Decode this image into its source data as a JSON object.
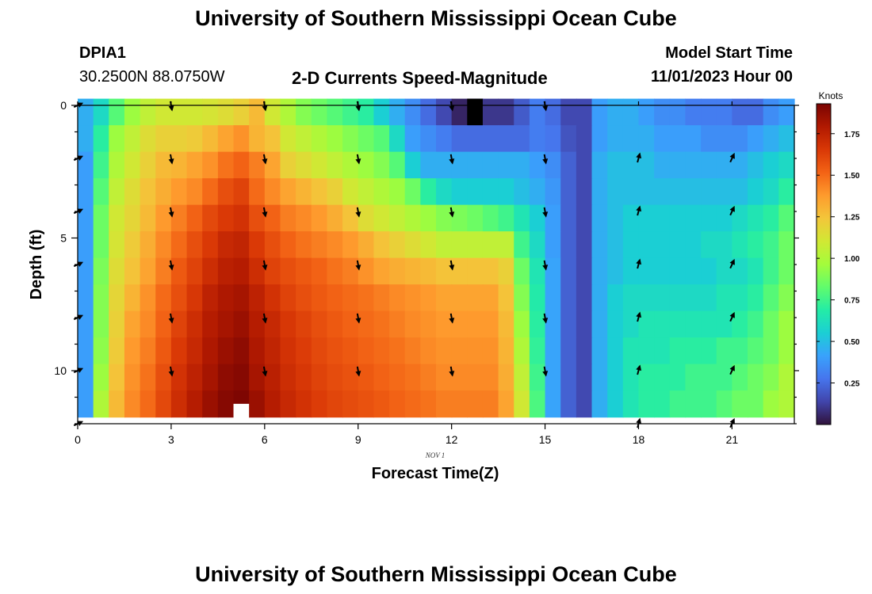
{
  "page": {
    "title_top": "University of Southern Mississippi Ocean Cube",
    "title_bottom": "University of Southern Mississippi Ocean Cube",
    "station_id": "DPIA1",
    "station_coords": "30.2500N  88.0750W",
    "plot_subtitle": "2-D Currents Speed-Magnitude",
    "model_start_label": "Model Start Time",
    "model_start_value": "11/01/2023 Hour 00"
  },
  "chart_data": {
    "type": "heatmap",
    "title": "2-D Currents Speed-Magnitude",
    "xlabel": "Forecast Time(Z)",
    "ylabel": "Depth (ft)",
    "date_label": "NOV 1",
    "xlim": [
      0,
      23
    ],
    "ylim": [
      12,
      0
    ],
    "x_ticks": [
      0,
      3,
      6,
      9,
      12,
      15,
      18,
      21
    ],
    "y_ticks": [
      0,
      5,
      10
    ],
    "x_centers": [
      0.25,
      0.75,
      1.25,
      1.75,
      2.25,
      2.75,
      3.25,
      3.75,
      4.25,
      4.75,
      5.25,
      5.75,
      6.25,
      6.75,
      7.25,
      7.75,
      8.25,
      8.75,
      9.25,
      9.75,
      10.25,
      10.75,
      11.25,
      11.75,
      12.25,
      12.75,
      13.25,
      13.75,
      14.25,
      14.75,
      15.25,
      15.75,
      16.25,
      16.75,
      17.25,
      17.75,
      18.25,
      18.75,
      19.25,
      19.75,
      20.25,
      20.75,
      21.25,
      21.75,
      22.25,
      22.75
    ],
    "depth_centers": [
      0.25,
      1.25,
      2.25,
      3.25,
      4.25,
      5.25,
      6.25,
      7.25,
      8.25,
      9.25,
      10.25,
      11.25
    ],
    "speed_knots": [
      [
        0.45,
        0.6,
        0.8,
        0.95,
        1.05,
        1.1,
        1.1,
        1.1,
        1.12,
        1.15,
        1.2,
        1.28,
        1.1,
        1.0,
        0.9,
        0.85,
        0.8,
        0.75,
        0.7,
        0.55,
        0.45,
        0.35,
        0.25,
        0.15,
        0.05,
        0.05,
        0.1,
        0.1,
        0.2,
        0.3,
        0.25,
        0.15,
        0.15,
        0.4,
        0.45,
        0.45,
        0.4,
        0.35,
        0.35,
        0.3,
        0.3,
        0.3,
        0.25,
        0.25,
        0.35,
        0.4
      ],
      [
        0.45,
        0.7,
        0.95,
        1.05,
        1.15,
        1.2,
        1.2,
        1.22,
        1.28,
        1.35,
        1.4,
        1.3,
        1.25,
        1.1,
        1.05,
        1.0,
        0.95,
        0.9,
        0.85,
        0.8,
        0.6,
        0.4,
        0.35,
        0.3,
        0.25,
        0.25,
        0.25,
        0.25,
        0.25,
        0.3,
        0.28,
        0.18,
        0.15,
        0.4,
        0.45,
        0.45,
        0.45,
        0.4,
        0.4,
        0.4,
        0.35,
        0.35,
        0.35,
        0.4,
        0.45,
        0.5
      ],
      [
        0.4,
        0.75,
        1.0,
        1.1,
        1.2,
        1.28,
        1.3,
        1.35,
        1.4,
        1.48,
        1.52,
        1.45,
        1.35,
        1.2,
        1.15,
        1.1,
        1.05,
        1.0,
        0.95,
        0.9,
        0.8,
        0.55,
        0.45,
        0.45,
        0.45,
        0.45,
        0.45,
        0.45,
        0.45,
        0.4,
        0.35,
        0.22,
        0.15,
        0.45,
        0.5,
        0.5,
        0.5,
        0.45,
        0.45,
        0.45,
        0.45,
        0.45,
        0.45,
        0.5,
        0.55,
        0.6
      ],
      [
        0.4,
        0.8,
        1.05,
        1.15,
        1.25,
        1.32,
        1.38,
        1.42,
        1.5,
        1.58,
        1.62,
        1.5,
        1.42,
        1.35,
        1.3,
        1.25,
        1.2,
        1.1,
        1.05,
        1.0,
        0.95,
        0.85,
        0.7,
        0.6,
        0.55,
        0.55,
        0.55,
        0.55,
        0.5,
        0.45,
        0.38,
        0.22,
        0.15,
        0.45,
        0.5,
        0.5,
        0.5,
        0.5,
        0.5,
        0.5,
        0.5,
        0.5,
        0.5,
        0.55,
        0.6,
        0.7
      ],
      [
        0.4,
        0.85,
        1.1,
        1.18,
        1.28,
        1.38,
        1.45,
        1.52,
        1.6,
        1.65,
        1.68,
        1.58,
        1.52,
        1.45,
        1.42,
        1.38,
        1.32,
        1.25,
        1.15,
        1.1,
        1.05,
        1.0,
        0.95,
        0.9,
        0.88,
        0.85,
        0.8,
        0.75,
        0.65,
        0.55,
        0.4,
        0.22,
        0.15,
        0.45,
        0.5,
        0.55,
        0.55,
        0.55,
        0.55,
        0.55,
        0.55,
        0.55,
        0.6,
        0.65,
        0.7,
        0.8
      ],
      [
        0.4,
        0.85,
        1.12,
        1.22,
        1.32,
        1.42,
        1.5,
        1.58,
        1.65,
        1.72,
        1.74,
        1.65,
        1.58,
        1.52,
        1.48,
        1.45,
        1.42,
        1.38,
        1.32,
        1.25,
        1.2,
        1.15,
        1.1,
        1.05,
        1.05,
        1.05,
        1.05,
        1.05,
        0.75,
        0.6,
        0.4,
        0.22,
        0.15,
        0.45,
        0.5,
        0.55,
        0.55,
        0.55,
        0.55,
        0.55,
        0.6,
        0.6,
        0.65,
        0.7,
        0.75,
        0.85
      ],
      [
        0.4,
        0.88,
        1.15,
        1.25,
        1.35,
        1.45,
        1.55,
        1.62,
        1.7,
        1.76,
        1.78,
        1.7,
        1.62,
        1.58,
        1.55,
        1.52,
        1.48,
        1.45,
        1.4,
        1.35,
        1.32,
        1.3,
        1.28,
        1.25,
        1.25,
        1.25,
        1.25,
        1.2,
        0.85,
        0.65,
        0.42,
        0.22,
        0.15,
        0.45,
        0.5,
        0.55,
        0.55,
        0.55,
        0.55,
        0.55,
        0.55,
        0.6,
        0.6,
        0.65,
        0.75,
        0.85
      ],
      [
        0.4,
        0.9,
        1.18,
        1.3,
        1.4,
        1.5,
        1.58,
        1.66,
        1.75,
        1.8,
        1.82,
        1.75,
        1.68,
        1.62,
        1.58,
        1.55,
        1.52,
        1.5,
        1.48,
        1.45,
        1.42,
        1.4,
        1.38,
        1.35,
        1.35,
        1.35,
        1.35,
        1.25,
        0.9,
        0.68,
        0.42,
        0.22,
        0.15,
        0.45,
        0.55,
        0.6,
        0.6,
        0.6,
        0.6,
        0.6,
        0.6,
        0.65,
        0.65,
        0.7,
        0.8,
        0.9
      ],
      [
        0.4,
        0.9,
        1.2,
        1.35,
        1.42,
        1.52,
        1.62,
        1.7,
        1.78,
        1.82,
        1.85,
        1.78,
        1.72,
        1.66,
        1.62,
        1.58,
        1.55,
        1.52,
        1.5,
        1.48,
        1.45,
        1.42,
        1.4,
        1.38,
        1.38,
        1.38,
        1.38,
        1.28,
        0.95,
        0.7,
        0.42,
        0.22,
        0.15,
        0.45,
        0.55,
        0.6,
        0.65,
        0.65,
        0.65,
        0.65,
        0.65,
        0.65,
        0.7,
        0.75,
        0.85,
        0.95
      ],
      [
        0.4,
        0.92,
        1.22,
        1.38,
        1.45,
        1.55,
        1.65,
        1.72,
        1.8,
        1.85,
        1.88,
        1.8,
        1.74,
        1.68,
        1.64,
        1.6,
        1.57,
        1.55,
        1.52,
        1.5,
        1.48,
        1.45,
        1.42,
        1.4,
        1.4,
        1.4,
        1.4,
        1.3,
        1.0,
        0.72,
        0.42,
        0.22,
        0.15,
        0.45,
        0.55,
        0.65,
        0.65,
        0.65,
        0.7,
        0.7,
        0.7,
        0.75,
        0.75,
        0.8,
        0.85,
        0.95
      ],
      [
        0.4,
        0.95,
        1.25,
        1.4,
        1.48,
        1.58,
        1.68,
        1.75,
        1.82,
        1.88,
        1.9,
        1.82,
        1.76,
        1.7,
        1.66,
        1.62,
        1.59,
        1.57,
        1.55,
        1.52,
        1.5,
        1.48,
        1.45,
        1.42,
        1.42,
        1.42,
        1.42,
        1.32,
        1.05,
        0.75,
        0.42,
        0.22,
        0.15,
        0.45,
        0.55,
        0.65,
        0.7,
        0.7,
        0.7,
        0.75,
        0.75,
        0.75,
        0.8,
        0.85,
        0.9,
        1.0
      ],
      [
        0.4,
        1.0,
        1.28,
        1.42,
        1.5,
        1.6,
        1.7,
        1.78,
        1.85,
        1.9,
        1.92,
        1.85,
        1.78,
        1.72,
        1.68,
        1.64,
        1.61,
        1.59,
        1.57,
        1.55,
        1.52,
        1.5,
        1.48,
        1.45,
        1.45,
        1.45,
        1.45,
        1.35,
        1.1,
        0.78,
        0.42,
        0.22,
        0.15,
        0.45,
        0.55,
        0.65,
        0.7,
        0.7,
        0.75,
        0.75,
        0.75,
        0.8,
        0.85,
        0.85,
        0.95,
        1.0
      ]
    ],
    "missing_cells": [
      {
        "hour": 12.75,
        "depth": 0.25,
        "color": "#000000"
      },
      {
        "hour": 5.25,
        "depth": 11.75,
        "color": "#ffffff"
      }
    ],
    "arrow_hours": [
      0,
      3,
      6,
      9,
      12,
      15,
      18,
      21
    ],
    "arrow_depths": [
      0,
      2,
      4,
      6,
      8,
      10,
      12
    ],
    "arrow_direction_by_hour": [
      {
        "hour": 0,
        "direction_deg": 65
      },
      {
        "hour": 3,
        "direction_deg": 170
      },
      {
        "hour": 6,
        "direction_deg": 170
      },
      {
        "hour": 9,
        "direction_deg": 170
      },
      {
        "hour": 12,
        "direction_deg": 170
      },
      {
        "hour": 15,
        "direction_deg": 170
      },
      {
        "hour": 18,
        "direction_deg": 15
      },
      {
        "hour": 21,
        "direction_deg": 25
      }
    ],
    "arrow_depths_skipped_by_hour": [
      {
        "hour": 3,
        "depths": [
          12
        ]
      },
      {
        "hour": 6,
        "depths": [
          12
        ]
      },
      {
        "hour": 9,
        "depths": [
          12
        ]
      },
      {
        "hour": 12,
        "depths": [
          12
        ]
      },
      {
        "hour": 15,
        "depths": [
          12
        ]
      },
      {
        "hour": 18,
        "depths": [
          0
        ]
      },
      {
        "hour": 21,
        "depths": [
          0
        ]
      }
    ],
    "colorbar": {
      "label": "Knots",
      "min": 0.0,
      "max": 1.93,
      "ticks": [
        0.25,
        0.5,
        0.75,
        1.0,
        1.25,
        1.5,
        1.75
      ],
      "tick_labels": [
        "0.25",
        "0.50",
        "0.75",
        "1.00",
        "1.25",
        "1.50",
        "1.75"
      ],
      "colormap": [
        "#30123b",
        "#4145ab",
        "#4675ed",
        "#39a2fc",
        "#1bcfd4",
        "#24eca6",
        "#61fc6c",
        "#a4fc3b",
        "#d1e834",
        "#f3c63a",
        "#fe9b2d",
        "#f36315",
        "#d93806",
        "#b11901",
        "#7a0402"
      ]
    }
  }
}
